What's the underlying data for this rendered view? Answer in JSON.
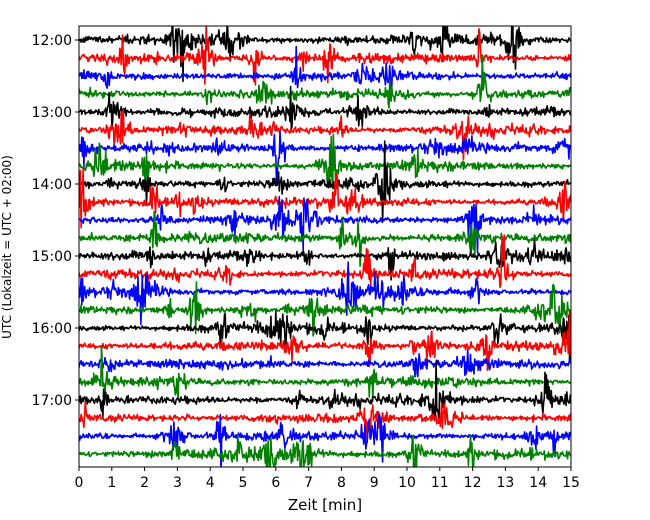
{
  "chart_data": {
    "type": "line",
    "title": "",
    "xlabel": "Zeit  [min]",
    "ylabel": "UTC (Lokalzeit = UTC + 02:00)",
    "xlim": [
      0,
      15
    ],
    "x_ticks": [
      "0",
      "1",
      "2",
      "3",
      "4",
      "5",
      "6",
      "7",
      "8",
      "9",
      "10",
      "11",
      "12",
      "13",
      "14",
      "15"
    ],
    "y_ticks": [
      "12:00",
      "13:00",
      "14:00",
      "15:00",
      "16:00",
      "17:00"
    ],
    "trace_interval_min": 15,
    "first_trace": "12:00",
    "last_trace": "17:45",
    "series_colors": [
      "#000000",
      "#ff0000",
      "#0000ff",
      "#008000"
    ],
    "grid": false,
    "legend": "none"
  }
}
